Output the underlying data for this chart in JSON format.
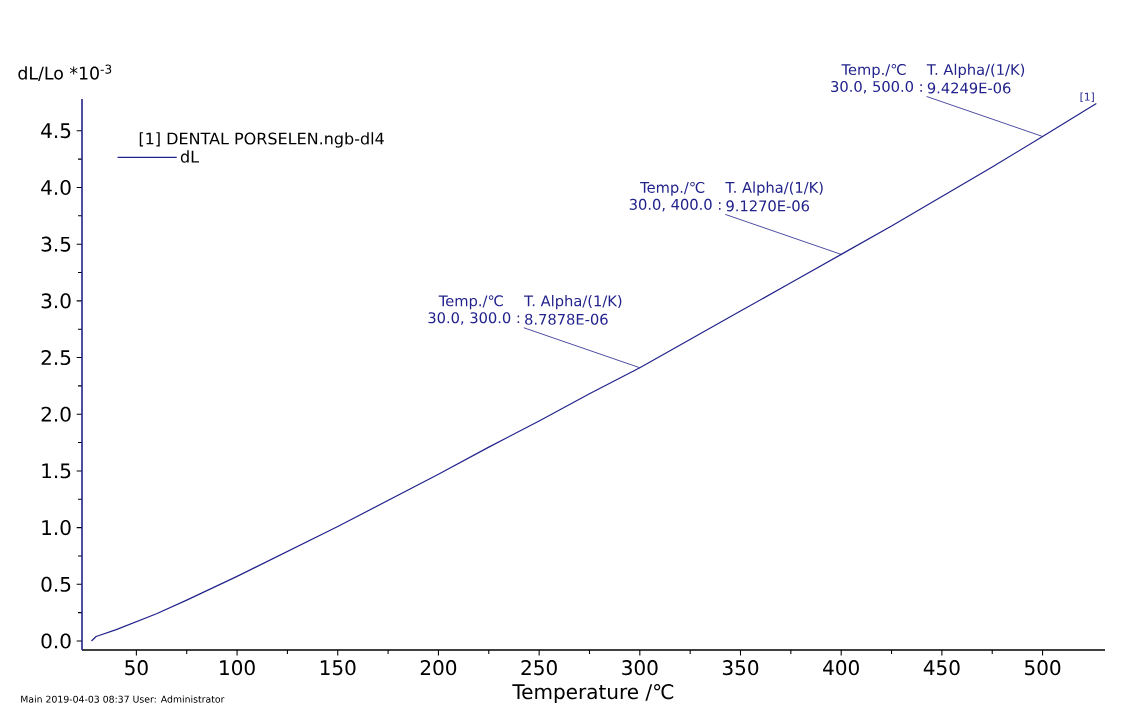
{
  "chart_data": {
    "type": "line",
    "xlabel": "Temperature /℃",
    "ylabel": "dL/Lo *10$^{-3}$",
    "legend_title": "[1] DENTAL PORSELEN.ngb-dl4",
    "x": [
      27.7,
      30,
      40,
      50,
      60,
      75,
      100,
      125,
      150,
      175,
      200,
      225,
      250,
      275,
      300,
      325,
      350,
      375,
      400,
      425,
      450,
      475,
      500,
      526.7
    ],
    "series": [
      {
        "name": "dL",
        "color": "#22228c",
        "values": [
          0,
          0.04,
          0.1,
          0.17,
          0.24,
          0.36,
          0.57,
          0.79,
          1.01,
          1.24,
          1.47,
          1.71,
          1.94,
          2.18,
          2.41,
          2.66,
          2.91,
          3.16,
          3.41,
          3.66,
          3.92,
          4.18,
          4.45,
          4.74
        ]
      }
    ],
    "xlim": [
      23,
      531
    ],
    "ylim": [
      -0.08,
      4.78
    ],
    "xticks": [
      50,
      100,
      150,
      200,
      250,
      300,
      350,
      400,
      450,
      500
    ],
    "yticks": [
      {
        "value": 0,
        "label": "0.0"
      },
      0.5,
      {
        "value": 1,
        "label": "1.0"
      },
      1.5,
      {
        "value": 2,
        "label": "2.0"
      },
      2.5,
      {
        "value": 3,
        "label": "3.0"
      },
      3.5,
      {
        "value": 4,
        "label": "4.0"
      },
      4.5
    ],
    "grid": false,
    "legend": "top left",
    "marker": "none",
    "line_style": "solid",
    "annotations": [
      "Temp./℃",
      "T. Alpha/(1/K)",
      "30.0, 300.0 :",
      {
        "text": "8.7878E-06",
        "x": 300,
        "y": 2.41
      },
      "Temp./℃",
      "T. Alpha/(1/K)",
      "30.0, 400.0 :",
      {
        "text": "9.1270E-06",
        "x": 400,
        "y": 3.41
      },
      "Temp./℃",
      "T. Alpha/(1/K)",
      "30.0, 500.0 :",
      {
        "text": "9.4249E-06",
        "x": 500,
        "y": 4.45
      },
      {
        "text": "[1]",
        "x": 526.7,
        "y": 4.74
      },
      "Main    2019-04-03 08:37    User: Administrator"
    ]
  }
}
